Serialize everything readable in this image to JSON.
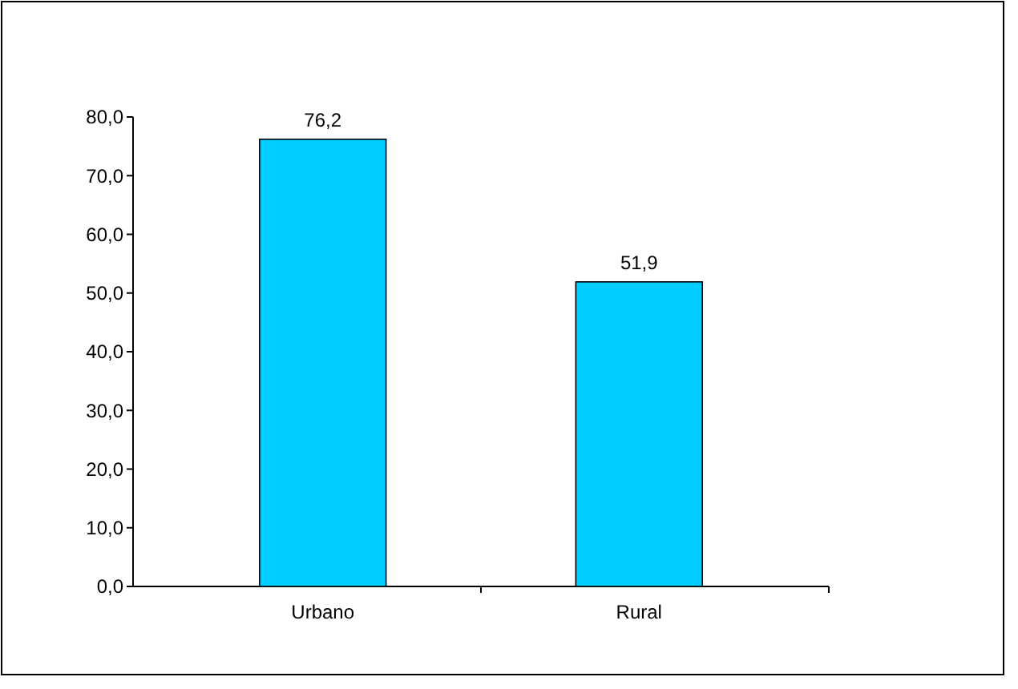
{
  "chart_data": {
    "type": "bar",
    "categories": [
      "Urbano",
      "Rural"
    ],
    "values": [
      76.2,
      51.9
    ],
    "color": "#00ccff",
    "value_labels": [
      "76,2",
      "51,9"
    ],
    "ylim": [
      0,
      80
    ],
    "yticks": [
      {
        "value": 0,
        "label": "0,0"
      },
      {
        "value": 10,
        "label": "10,0"
      },
      {
        "value": 20,
        "label": "20,0"
      },
      {
        "value": 30,
        "label": "30,0"
      },
      {
        "value": 40,
        "label": "40,0"
      },
      {
        "value": 50,
        "label": "50,0"
      },
      {
        "value": 60,
        "label": "60,0"
      },
      {
        "value": 70,
        "label": "70,0"
      },
      {
        "value": 80,
        "label": "80,0"
      }
    ],
    "grid": false
  }
}
